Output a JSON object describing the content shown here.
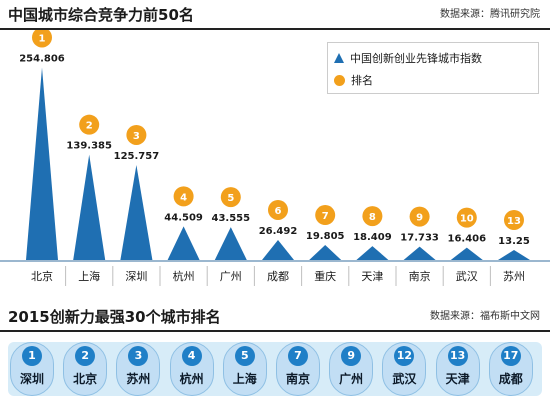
{
  "top": {
    "title": "中国城市综合竞争力前50名",
    "source": "数据来源：腾讯研究院"
  },
  "legend": {
    "index_label": "中国创新创业先锋城市指数",
    "rank_label": "排名"
  },
  "colors": {
    "bar": "#1f6fb2",
    "rank_circle": "#f2a01c",
    "rank_circle_alt": "#1f7fc7",
    "band": "#d7ecf8"
  },
  "chart_data": {
    "type": "bar",
    "mark_shape": "triangle",
    "categories": [
      "北京",
      "上海",
      "深圳",
      "杭州",
      "广州",
      "成都",
      "重庆",
      "天津",
      "南京",
      "武汉",
      "苏州"
    ],
    "values": [
      254.806,
      139.385,
      125.757,
      44.509,
      43.555,
      26.492,
      19.805,
      18.409,
      17.733,
      16.406,
      13.25
    ],
    "value_labels": [
      "254.806",
      "139.385",
      "125.757",
      "44.509",
      "43.555",
      "26.492",
      "19.805",
      "18.409",
      "17.733",
      "16.406",
      "13.25"
    ],
    "ranks": [
      "1",
      "2",
      "3",
      "4",
      "5",
      "6",
      "7",
      "8",
      "9",
      "10",
      "13"
    ],
    "ylim": [
      0,
      270
    ]
  },
  "bottom": {
    "title": "2015创新力最强30个城市排名",
    "source": "数据来源：福布斯中文网",
    "items": [
      {
        "rank": "1",
        "city": "深圳"
      },
      {
        "rank": "2",
        "city": "北京"
      },
      {
        "rank": "3",
        "city": "苏州"
      },
      {
        "rank": "4",
        "city": "杭州"
      },
      {
        "rank": "5",
        "city": "上海"
      },
      {
        "rank": "7",
        "city": "南京"
      },
      {
        "rank": "9",
        "city": "广州"
      },
      {
        "rank": "12",
        "city": "武汉"
      },
      {
        "rank": "13",
        "city": "天津"
      },
      {
        "rank": "17",
        "city": "成都"
      }
    ]
  }
}
